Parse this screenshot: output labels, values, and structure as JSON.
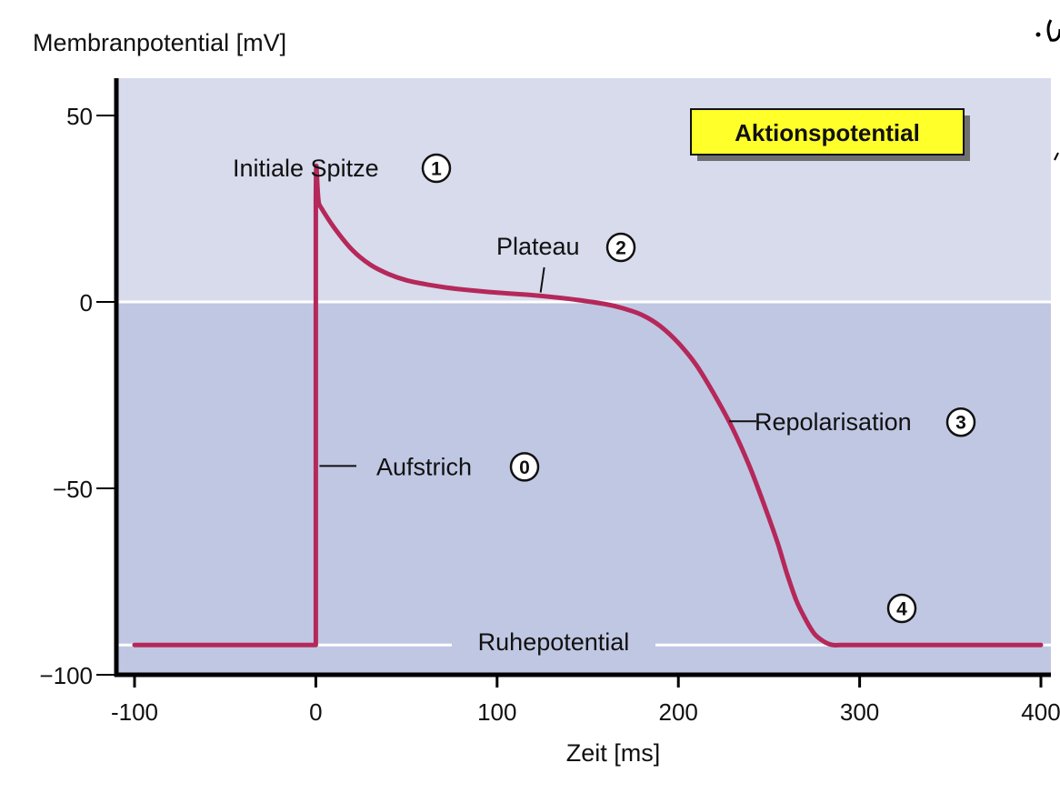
{
  "chart_data": {
    "type": "line",
    "title": "Aktionspotential",
    "ylabel": "Membranpotential [mV]",
    "xlabel": "Zeit [ms]",
    "xlim": [
      -100,
      400
    ],
    "ylim": [
      -100,
      50
    ],
    "x_ticks": [
      -100,
      0,
      100,
      200,
      300,
      400
    ],
    "x_tick_labels": [
      "-100",
      "0",
      "100",
      "200",
      "300",
      "400"
    ],
    "y_ticks": [
      50,
      0,
      -50,
      -100
    ],
    "y_tick_labels": [
      "50",
      "0",
      "−50",
      "−100"
    ],
    "rest_potential_mV": -92,
    "series": [
      {
        "x": [
          -100,
          0,
          0,
          2,
          10,
          20,
          30,
          40,
          50,
          60,
          70,
          80,
          100,
          120,
          140,
          160,
          170,
          180,
          190,
          200,
          210,
          220,
          230,
          240,
          250,
          255,
          260,
          265,
          270,
          275,
          280,
          285,
          290,
          300,
          350,
          400
        ],
        "values": [
          -92,
          -92,
          28,
          26,
          20,
          14,
          10,
          7.5,
          5.8,
          4.8,
          4,
          3.4,
          2.5,
          1.8,
          0.8,
          -0.6,
          -1.8,
          -3.5,
          -6.5,
          -11,
          -17,
          -25,
          -34,
          -45,
          -58,
          -65,
          -73,
          -80,
          -85,
          -89,
          -91,
          -92,
          -92,
          -92,
          -92,
          -92
        ]
      }
    ],
    "annotations": {
      "peak": {
        "label": "Initiale Spitze",
        "number": "1"
      },
      "plateau": {
        "label": "Plateau",
        "number": "2"
      },
      "repolarization": {
        "label": "Repolarisation",
        "number": "3"
      },
      "upstroke": {
        "label": "Aufstrich",
        "number": "0"
      },
      "resting": {
        "label": "Ruhepotential",
        "number": "4"
      }
    },
    "colors": {
      "curve": "#b5285a",
      "band_upper": "#d7dbec",
      "band_lower": "#c0c7e3",
      "title_box": "#ffff2a",
      "title_shadow": "#6f6f6f",
      "axis": "#000000",
      "reference_line": "#ffffff"
    }
  }
}
